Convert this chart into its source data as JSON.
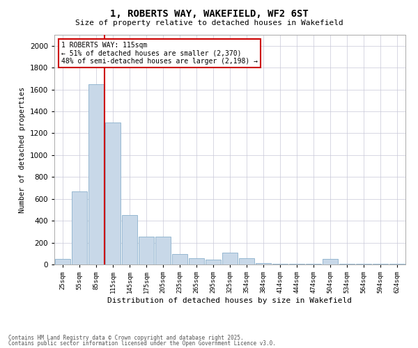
{
  "title": "1, ROBERTS WAY, WAKEFIELD, WF2 6ST",
  "subtitle": "Size of property relative to detached houses in Wakefield",
  "xlabel": "Distribution of detached houses by size in Wakefield",
  "ylabel": "Number of detached properties",
  "categories": [
    "25sqm",
    "55sqm",
    "85sqm",
    "115sqm",
    "145sqm",
    "175sqm",
    "205sqm",
    "235sqm",
    "265sqm",
    "295sqm",
    "325sqm",
    "354sqm",
    "384sqm",
    "414sqm",
    "444sqm",
    "474sqm",
    "504sqm",
    "534sqm",
    "564sqm",
    "594sqm",
    "624sqm"
  ],
  "values": [
    50,
    670,
    1650,
    1300,
    450,
    255,
    255,
    95,
    55,
    45,
    110,
    55,
    10,
    5,
    5,
    5,
    50,
    5,
    5,
    5,
    5
  ],
  "bar_color": "#c8d8e8",
  "bar_edge_color": "#8ab0cc",
  "red_line_x": 2.5,
  "red_line_color": "#cc0000",
  "annotation_text": "1 ROBERTS WAY: 115sqm\n← 51% of detached houses are smaller (2,370)\n48% of semi-detached houses are larger (2,198) →",
  "annotation_box_edge_color": "#cc0000",
  "ylim": [
    0,
    2100
  ],
  "yticks": [
    0,
    200,
    400,
    600,
    800,
    1000,
    1200,
    1400,
    1600,
    1800,
    2000
  ],
  "footer1": "Contains HM Land Registry data © Crown copyright and database right 2025.",
  "footer2": "Contains public sector information licensed under the Open Government Licence v3.0.",
  "bg_color": "#ffffff",
  "grid_color": "#c8c8d8"
}
